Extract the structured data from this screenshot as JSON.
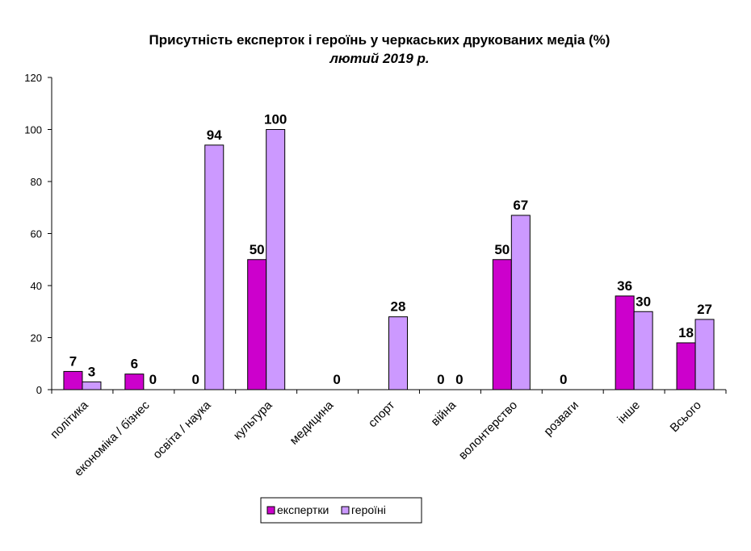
{
  "chart_data": {
    "type": "bar",
    "title": "Присутність експерток і героїнь у черкаських друкованих медіа (%)",
    "subtitle": "лютий 2019 р.",
    "categories": [
      "політика",
      "економіка / бізнес",
      "освіта / наука",
      "культура",
      "медицина",
      "спорт",
      "війна",
      "волонтерство",
      "розваги",
      "інше",
      "Всього"
    ],
    "series": [
      {
        "name": "експертки",
        "color": "#cc00cc",
        "values": [
          7,
          6,
          0,
          50,
          null,
          null,
          0,
          50,
          0,
          36,
          18
        ]
      },
      {
        "name": "героїні",
        "color": "#cc99ff",
        "values": [
          3,
          0,
          94,
          100,
          0,
          28,
          0,
          67,
          null,
          30,
          27
        ]
      }
    ],
    "ylim": [
      0,
      120
    ],
    "yticks": [
      0,
      20,
      40,
      60,
      80,
      100,
      120
    ],
    "grid": false,
    "legend_position": "bottom"
  }
}
